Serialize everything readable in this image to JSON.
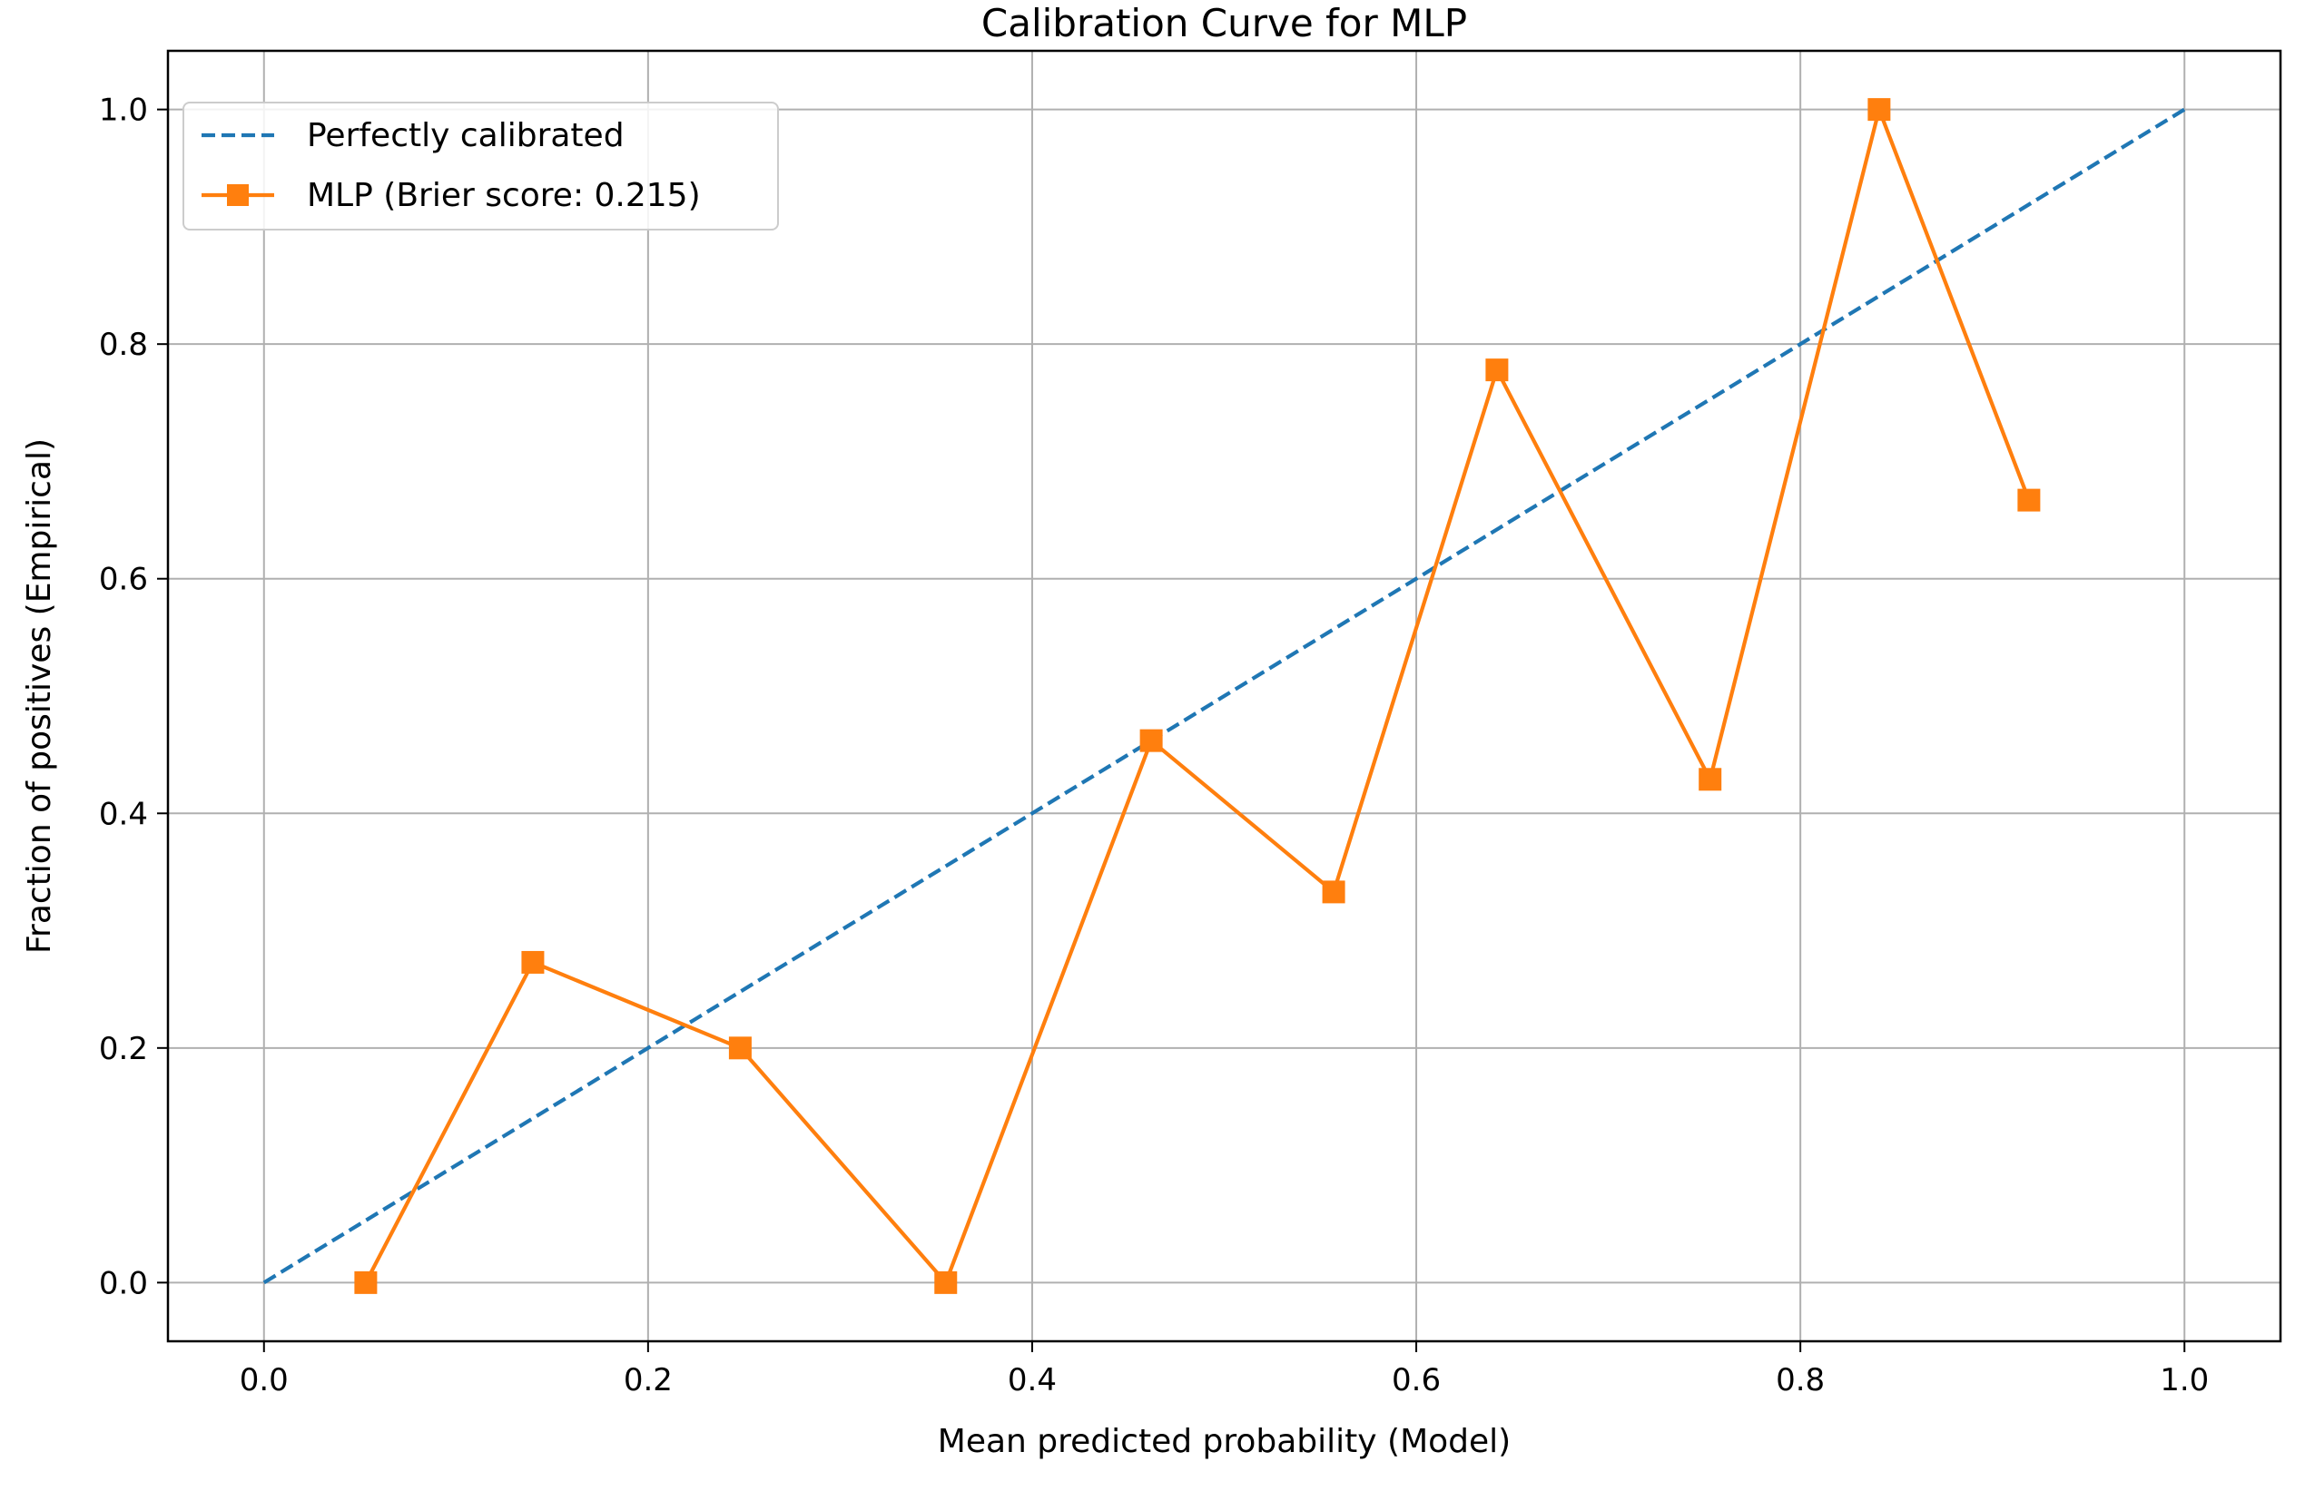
{
  "chart_data": {
    "type": "line",
    "title": "Calibration Curve for MLP",
    "xlabel": "Mean predicted probability (Model)",
    "ylabel": "Fraction of positives (Empirical)",
    "xlim": [
      -0.05,
      1.05
    ],
    "ylim": [
      -0.05,
      1.05
    ],
    "xticks": [
      "0.0",
      "0.2",
      "0.4",
      "0.6",
      "0.8",
      "1.0"
    ],
    "yticks": [
      "0.0",
      "0.2",
      "0.4",
      "0.6",
      "0.8",
      "1.0"
    ],
    "grid": true,
    "legend_position": "upper-left",
    "series": [
      {
        "name": "Perfectly calibrated",
        "style": "dashed",
        "color": "#1f77b4",
        "x": [
          0.0,
          1.0
        ],
        "y": [
          0.0,
          1.0
        ]
      },
      {
        "name": "MLP (Brier score: 0.215)",
        "style": "solid",
        "marker": "square",
        "color": "#ff7f0e",
        "x": [
          0.053,
          0.14,
          0.248,
          0.355,
          0.462,
          0.557,
          0.642,
          0.753,
          0.841,
          0.919
        ],
        "y": [
          0.0,
          0.273,
          0.2,
          0.0,
          0.462,
          0.333,
          0.778,
          0.429,
          1.0,
          0.667
        ]
      }
    ]
  }
}
